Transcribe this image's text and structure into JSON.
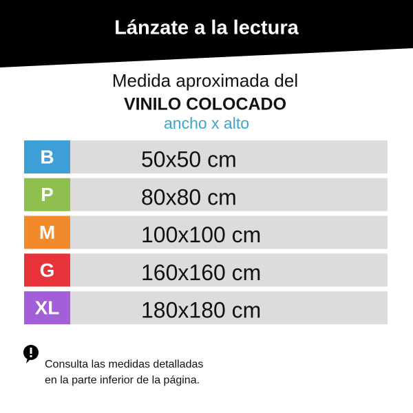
{
  "header": {
    "title": "Lánzate a la lectura"
  },
  "intro": {
    "line1": "Medida aproximada del",
    "line2": "VINILO COLOCADO",
    "line3": "ancho x alto"
  },
  "sizes": {
    "rows": [
      {
        "label": "B",
        "size": "50x50 cm",
        "color": "#3d9fd6"
      },
      {
        "label": "P",
        "size": "80x80 cm",
        "color": "#8fc04f"
      },
      {
        "label": "M",
        "size": "100x100 cm",
        "color": "#f08a2a"
      },
      {
        "label": "G",
        "size": "160x160 cm",
        "color": "#e8333a"
      },
      {
        "label": "XL",
        "size": "180x180 cm",
        "color": "#a25fd8"
      }
    ]
  },
  "note": {
    "line1": "Consulta las medidas detalladas",
    "line2": "en la parte inferior de la página."
  }
}
